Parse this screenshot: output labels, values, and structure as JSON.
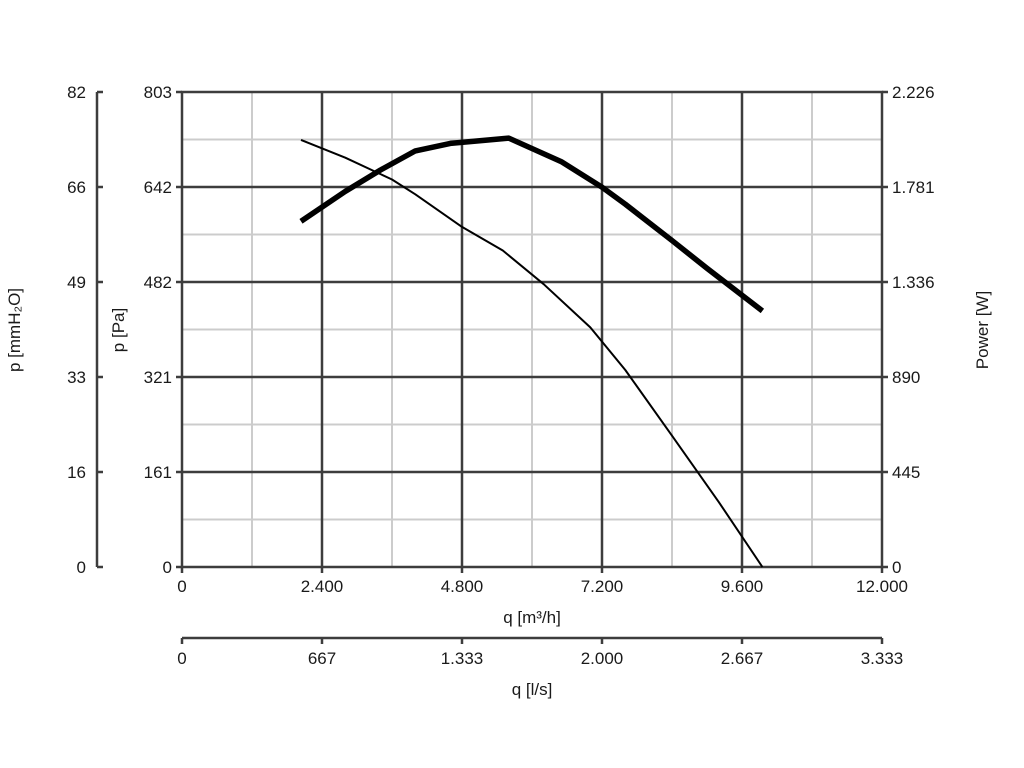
{
  "chart_data": {
    "type": "line",
    "xlabel": "q [m³/h]",
    "xlabel_secondary": "q [l/s]",
    "ylabel": "p [Pa]",
    "ylabel_secondary": "p [mmH₂O]",
    "ylabel_right": "Power [W]",
    "xlim": [
      0,
      12000
    ],
    "ylim": [
      0,
      803
    ],
    "ylim_secondary": [
      0,
      82
    ],
    "ylim_right": [
      0,
      2226
    ],
    "grid": true,
    "x_ticks": [
      "0",
      "2.400",
      "4.800",
      "7.200",
      "9.600",
      "12.000"
    ],
    "x_secondary_ticks": [
      "0",
      "667",
      "1.333",
      "2.000",
      "2.667",
      "3.333"
    ],
    "y_ticks": [
      "0",
      "161",
      "321",
      "482",
      "642",
      "803"
    ],
    "y_secondary_ticks": [
      "0",
      "16",
      "33",
      "49",
      "66",
      "82"
    ],
    "y_right_ticks": [
      "0",
      "445",
      "890",
      "1.336",
      "1.781",
      "2.226"
    ],
    "series": [
      {
        "axis": "left",
        "x": [
          2040,
          2800,
          3600,
          4000,
          4800,
          5500,
          6200,
          7000,
          7600,
          8400,
          9200,
          9950
        ],
        "values": [
          722,
          692,
          655,
          630,
          575,
          535,
          478,
          405,
          333,
          222,
          110,
          0
        ]
      },
      {
        "axis": "right",
        "x": [
          2040,
          2800,
          3400,
          4000,
          4600,
          5200,
          5600,
          6500,
          7200,
          7600,
          8400,
          9000,
          9950
        ],
        "values": [
          1620,
          1760,
          1860,
          1950,
          1985,
          2000,
          2010,
          1900,
          1780,
          1700,
          1530,
          1400,
          1200
        ]
      }
    ]
  }
}
